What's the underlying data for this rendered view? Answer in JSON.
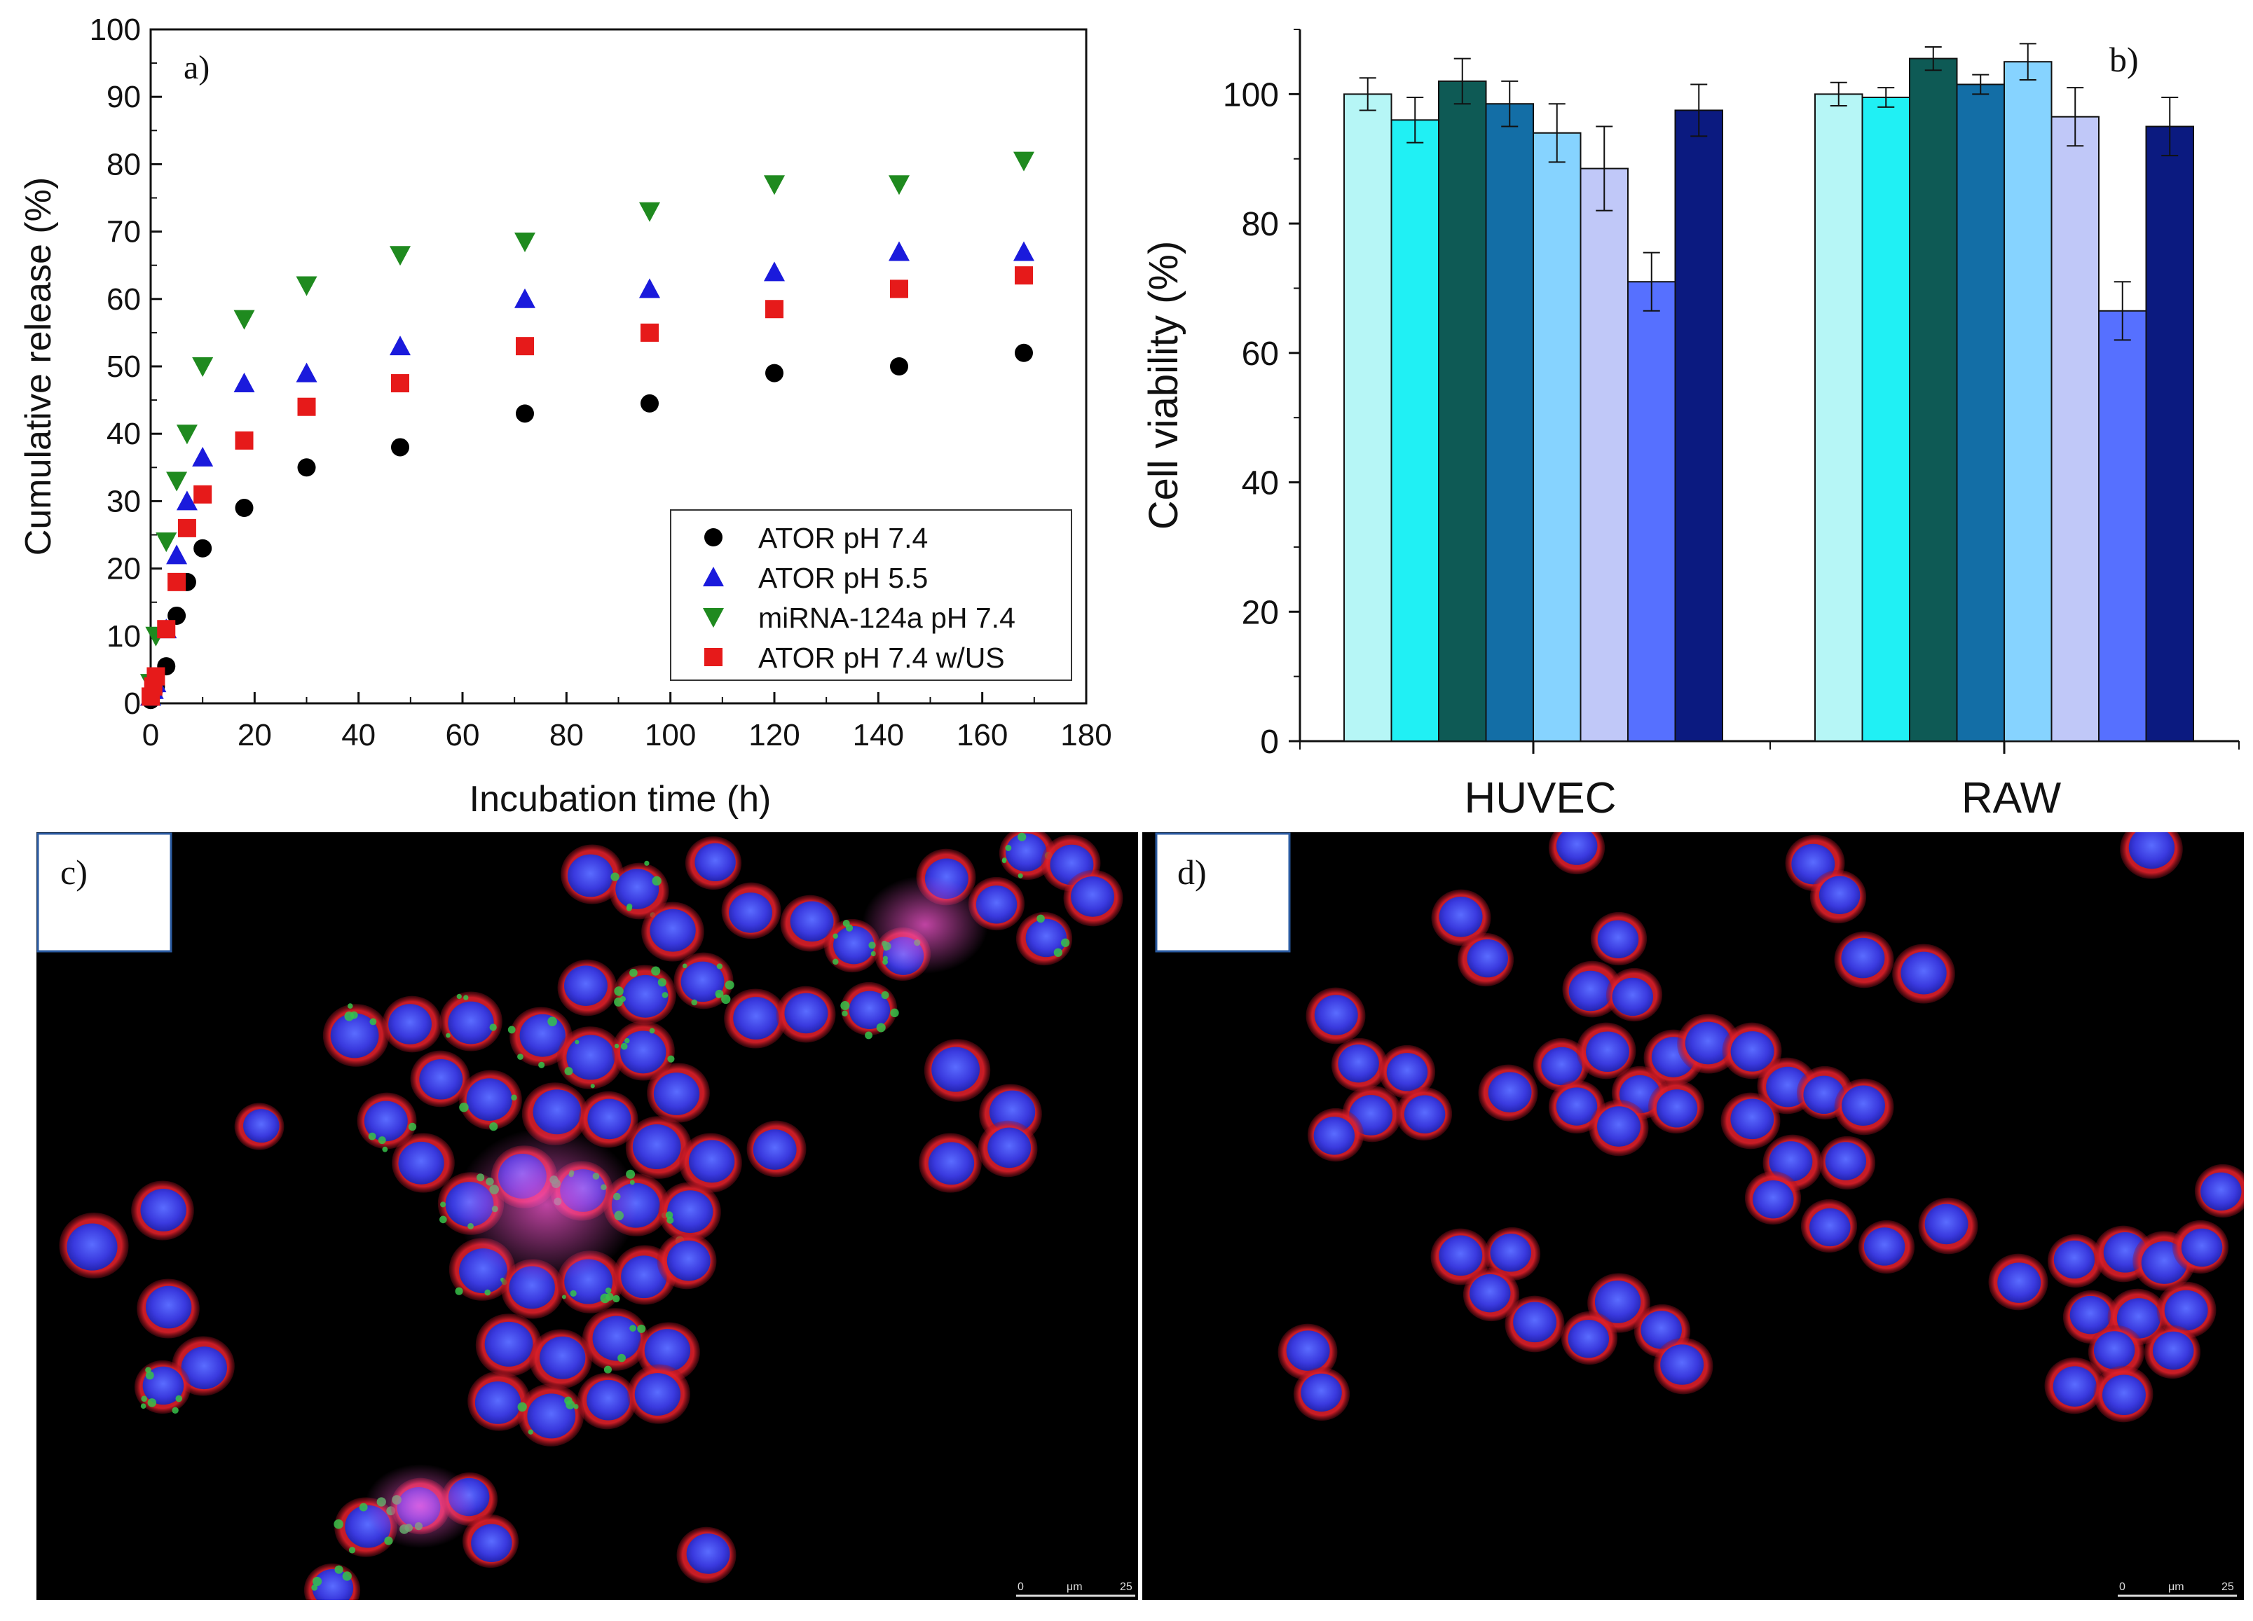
{
  "colors": {
    "ator74": "#000000",
    "ator55": "#1a1adc",
    "mirna": "#1f8a1f",
    "ator_us": "#e61a1a",
    "bars": [
      "#b6f6f6",
      "#20f0f4",
      "#0e5a55",
      "#136ea6",
      "#86d3ff",
      "#c0c8f8",
      "#5670ff",
      "#0b1a80"
    ],
    "nucleus": "#3a3adf",
    "membrane": "#e0202a",
    "uptake": "#36c24a"
  },
  "chart_data": [
    {
      "panel": "a)",
      "type": "scatter",
      "xlabel": "Incubation time (h)",
      "ylabel": "Cumulative release (%)",
      "xlim": [
        0,
        180
      ],
      "ylim": [
        0,
        100
      ],
      "xticks": [
        0,
        20,
        40,
        60,
        80,
        100,
        120,
        140,
        160,
        180
      ],
      "yticks": [
        0,
        10,
        20,
        30,
        40,
        50,
        60,
        70,
        80,
        90,
        100
      ],
      "legend_position": "lower-right",
      "series": [
        {
          "name": "ATOR pH 7.4",
          "marker": "circle",
          "color": "#000000",
          "x": [
            0,
            0.5,
            1,
            3,
            5,
            7,
            10,
            18,
            30,
            48,
            72,
            96,
            120,
            144,
            168
          ],
          "y": [
            0.5,
            1.5,
            2.5,
            5.5,
            13,
            18,
            23,
            29,
            35,
            38,
            43,
            44.5,
            49,
            50,
            52
          ]
        },
        {
          "name": "ATOR pH 5.5",
          "marker": "triangle-up",
          "color": "#1a1adc",
          "x": [
            0,
            0.5,
            1,
            3,
            5,
            7,
            10,
            18,
            30,
            48,
            72,
            96,
            120,
            144,
            168
          ],
          "y": [
            1,
            2,
            3,
            11,
            22,
            30,
            36.5,
            47.5,
            49,
            53,
            60,
            61.5,
            64,
            67,
            67
          ]
        },
        {
          "name": "miRNA-124a pH 7.4",
          "marker": "triangle-down",
          "color": "#1f8a1f",
          "x": [
            0,
            1,
            3,
            5,
            7,
            10,
            18,
            30,
            48,
            72,
            96,
            120,
            144,
            168
          ],
          "y": [
            3,
            10,
            24,
            33,
            40,
            50,
            57,
            62,
            66.5,
            68.5,
            73,
            77,
            77,
            80.5
          ]
        },
        {
          "name": "ATOR pH 7.4 w/US",
          "marker": "square",
          "color": "#e61a1a",
          "x": [
            0,
            0.5,
            1,
            3,
            5,
            7,
            10,
            18,
            30,
            48,
            72,
            96,
            120,
            144,
            168
          ],
          "y": [
            1,
            2.5,
            4,
            11,
            18,
            26,
            31,
            39,
            44,
            47.5,
            53,
            55,
            58.5,
            61.5,
            63.5
          ]
        }
      ]
    },
    {
      "panel": "b)",
      "type": "bar",
      "ylabel": "Cell viability (%)",
      "ylim": [
        0,
        110
      ],
      "yticks": [
        0,
        20,
        40,
        60,
        80,
        100
      ],
      "categories": [
        "HUVEC",
        "RAW"
      ],
      "groups": [
        {
          "category": "HUVEC",
          "values": [
            100,
            96,
            102,
            98.5,
            94,
            88.5,
            71,
            97.5
          ],
          "errors": [
            2.5,
            3.5,
            3.5,
            3.5,
            4.5,
            6.5,
            4.5,
            4
          ]
        },
        {
          "category": "RAW",
          "values": [
            100,
            99.5,
            105.5,
            101.5,
            105,
            96.5,
            66.5,
            95
          ],
          "errors": [
            1.8,
            1.5,
            1.8,
            1.5,
            2.8,
            4.5,
            4.5,
            4.5
          ]
        }
      ]
    }
  ],
  "micrographs": [
    {
      "panel": "c)",
      "scale_bar": {
        "start": "0",
        "unit": "μm",
        "end": "25"
      }
    },
    {
      "panel": "d)",
      "scale_bar": {
        "start": "0",
        "unit": "μm",
        "end": "25"
      }
    }
  ]
}
